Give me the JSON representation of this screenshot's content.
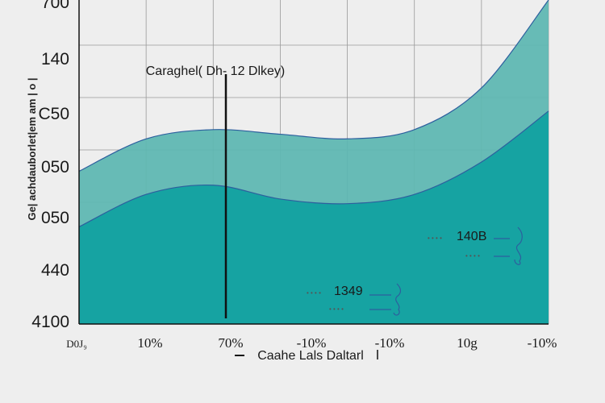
{
  "chart_data": {
    "type": "area",
    "title": "",
    "ylabel": "Ge| achdauborlet|em am | o |",
    "xlabel": "Caahe Lals Daltarl",
    "x_tick_labels": [
      "D0J₉",
      "10%",
      "70%",
      "-10%",
      "-10%",
      "10g",
      "-10%"
    ],
    "y_tick_labels": [
      "700",
      "140",
      "C50",
      "050",
      "050",
      "440",
      "4100"
    ],
    "grid": true,
    "legend": "none",
    "colors": {
      "upper": "#5fb7b2",
      "lower": "#16a3a2",
      "line": "#2d5f9e",
      "background": "#eeeeee"
    },
    "series": [
      {
        "values": [
          3.3,
          4.0,
          4.2,
          4.1,
          4.0,
          4.2,
          5.1,
          7.0
        ]
      },
      {
        "values": [
          2.1,
          2.8,
          3.0,
          2.7,
          2.6,
          2.8,
          3.5,
          4.6
        ]
      }
    ],
    "annotations": {
      "marker": {
        "label": "Caraghel( Dh- 12 Dlkey)",
        "x_index": 2.5
      },
      "callouts": [
        {
          "label": "1349"
        },
        {
          "label": "140B"
        }
      ]
    }
  }
}
